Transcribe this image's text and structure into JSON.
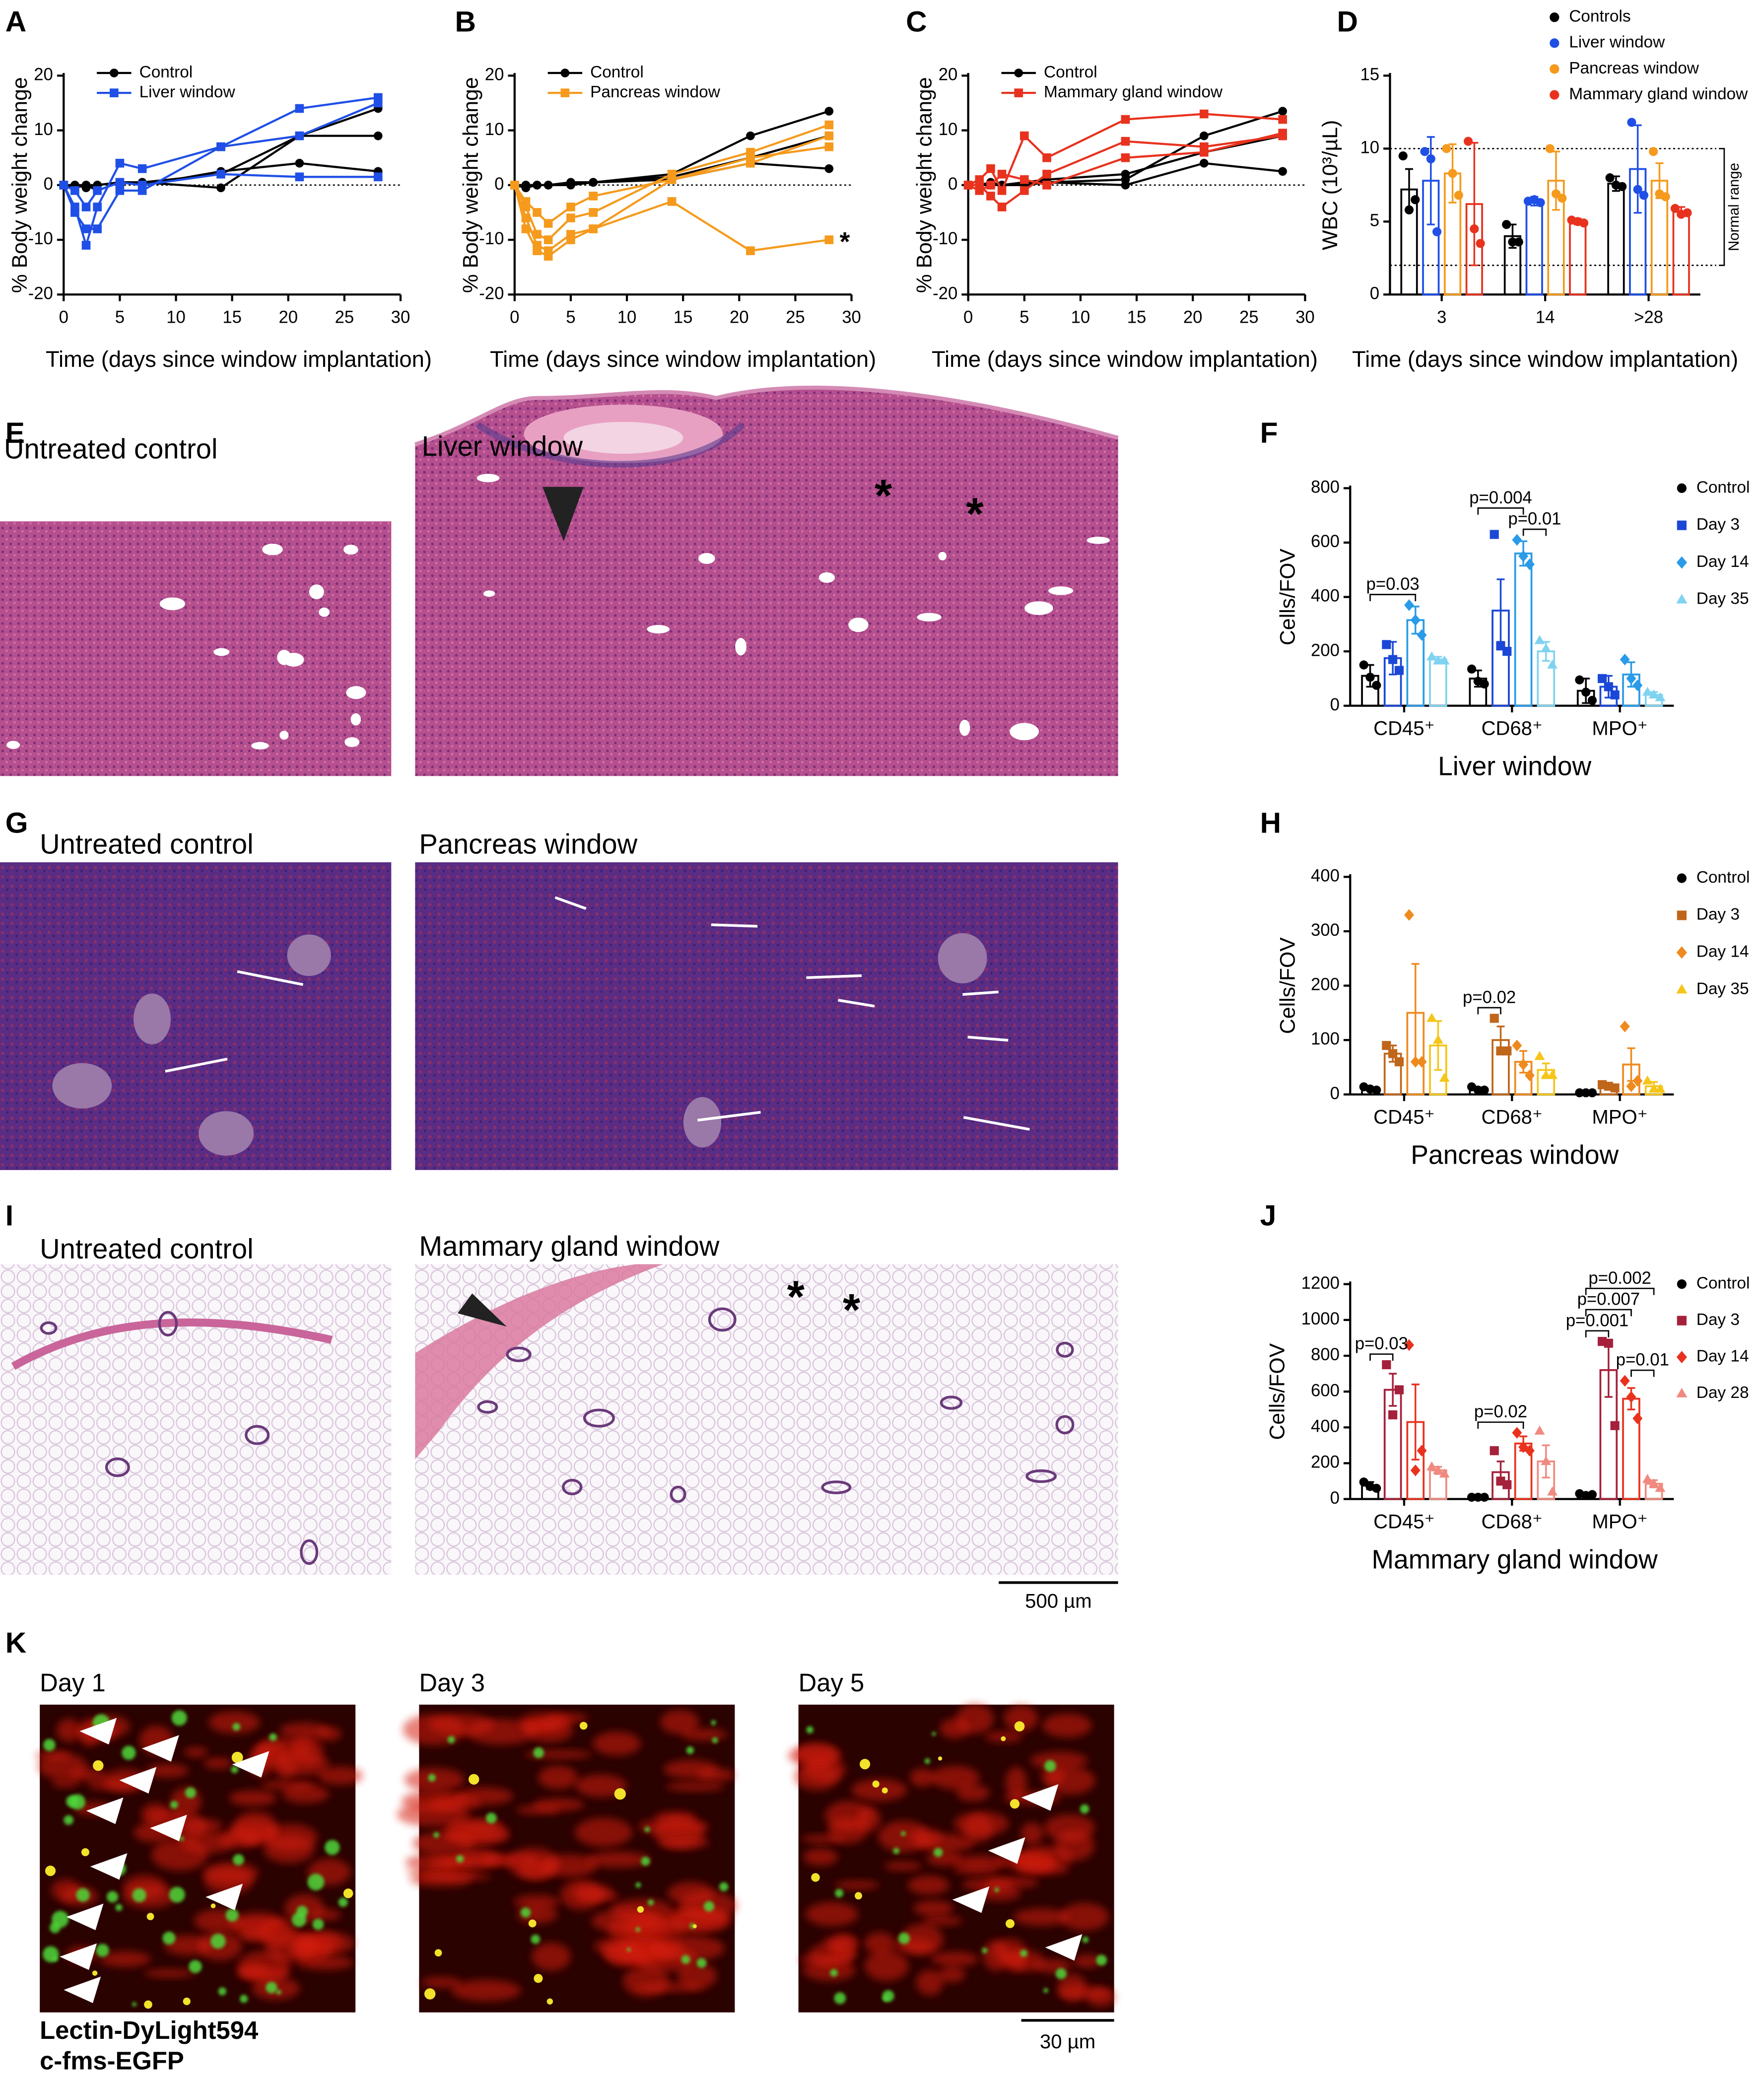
{
  "figure": {
    "letters": [
      "A",
      "B",
      "C",
      "D",
      "E",
      "F",
      "G",
      "H",
      "I",
      "J",
      "K"
    ],
    "image_titles": [
      "Untreated control",
      "Liver window",
      "Untreated control",
      "Pancreas window",
      "Untreated control",
      "Mammary gland window"
    ],
    "asterisks": [
      "*",
      "*",
      "*",
      "*"
    ],
    "scale_bars": [
      "500 µm",
      "30 µm"
    ],
    "day_labels": [
      "Day 1",
      "Day 3",
      "Day 5"
    ],
    "channels": [
      {
        "name": "Lectin-DyLight594",
        "color": "#e8321e"
      },
      {
        "name": "c-fms-EGFP",
        "color": "#3ec43a"
      }
    ]
  },
  "chart_data": [
    {
      "type": "line",
      "xlabel": "Time (days since window implantation)",
      "ylabel": "% Body weight change",
      "x": [
        0,
        1,
        2,
        3,
        5,
        7,
        14,
        21,
        28
      ],
      "xlim": [
        0,
        30
      ],
      "xticks": [
        0,
        5,
        10,
        15,
        20,
        25,
        30
      ],
      "ylim": [
        -20,
        20
      ],
      "yticks": [
        -20,
        -10,
        0,
        10,
        20
      ],
      "hline": 0,
      "legend": "upper left",
      "series": [
        {
          "name": "Control",
          "color": "#000000",
          "marker": "circle",
          "lines": [
            [
              0,
              -0.5,
              0,
              0,
              0.5,
              0.5,
              -0.5,
              9,
              14
            ],
            [
              0,
              0,
              -0.5,
              0,
              0.5,
              0.5,
              2,
              9,
              9
            ],
            [
              0,
              0,
              0,
              -1,
              0.5,
              0,
              2.5,
              4,
              2.5
            ]
          ]
        },
        {
          "name": "Liver window",
          "color": "#1f4fe6",
          "marker": "square",
          "lines": [
            [
              0,
              -4,
              -11,
              -4,
              4,
              3,
              7,
              14,
              16
            ],
            [
              0,
              -5,
              -8,
              -8,
              -1,
              -1,
              7,
              9,
              15
            ],
            [
              0,
              -1,
              -4,
              -1,
              0.5,
              0,
              2,
              1.5,
              1.5
            ]
          ]
        }
      ]
    },
    {
      "type": "line",
      "xlabel": "Time (days since window implantation)",
      "ylabel": "% Body weight change",
      "x": [
        0,
        1,
        2,
        3,
        5,
        7,
        14,
        21,
        28
      ],
      "xlim": [
        0,
        30
      ],
      "xticks": [
        0,
        5,
        10,
        15,
        20,
        25,
        30
      ],
      "ylim": [
        -20,
        20
      ],
      "yticks": [
        -20,
        -10,
        0,
        10,
        20
      ],
      "hline": 0,
      "legend": "upper left",
      "series": [
        {
          "name": "Control",
          "color": "#000000",
          "marker": "circle",
          "lines": [
            [
              0,
              0,
              0,
              0,
              0.5,
              0.5,
              2,
              9,
              13.5
            ],
            [
              0,
              0,
              0,
              0,
              0,
              0.5,
              1.5,
              5,
              9
            ],
            [
              0,
              -0.5,
              0,
              0,
              0.5,
              0.5,
              1,
              4,
              3
            ]
          ]
        },
        {
          "name": "Pancreas window",
          "color": "#f59a1c",
          "marker": "square",
          "lines": [
            [
              0,
              -4,
              -9,
              -10,
              -6,
              -5,
              2,
              6,
              11
            ],
            [
              0,
              -6,
              -11,
              -12,
              -9,
              -8,
              1,
              4,
              9
            ],
            [
              0,
              -8,
              -12,
              -13,
              -10,
              -8,
              -3,
              -12,
              -10
            ],
            [
              0,
              -3,
              -5,
              -7,
              -4,
              -2,
              1,
              5,
              7
            ]
          ]
        }
      ],
      "annotations": [
        {
          "text": "*",
          "series": 1,
          "line": 2,
          "point": 8
        }
      ]
    },
    {
      "type": "line",
      "xlabel": "Time (days since window implantation)",
      "ylabel": "% Body weight change",
      "x": [
        0,
        1,
        2,
        3,
        5,
        7,
        14,
        21,
        28
      ],
      "xlim": [
        0,
        30
      ],
      "xticks": [
        0,
        5,
        10,
        15,
        20,
        25,
        30
      ],
      "ylim": [
        -20,
        20
      ],
      "yticks": [
        -20,
        -10,
        0,
        10,
        20
      ],
      "hline": 0,
      "legend": "upper left",
      "series": [
        {
          "name": "Control",
          "color": "#000000",
          "marker": "circle",
          "lines": [
            [
              0,
              0,
              0,
              0,
              0.5,
              0.5,
              1,
              9,
              13.5
            ],
            [
              0,
              0,
              0.5,
              0,
              0.5,
              1,
              2,
              6,
              9
            ],
            [
              0,
              0,
              0,
              0,
              0,
              0.5,
              0,
              4,
              2.5
            ]
          ]
        },
        {
          "name": "Mammary gland window",
          "color": "#e8321e",
          "marker": "square",
          "lines": [
            [
              0,
              1,
              3,
              -1,
              9,
              5,
              12,
              13,
              12
            ],
            [
              0,
              0,
              -2,
              -4,
              -1,
              2,
              8,
              7,
              9
            ],
            [
              0,
              -1,
              0,
              2,
              1,
              0,
              5,
              6,
              9.5
            ]
          ]
        }
      ]
    },
    {
      "type": "bar",
      "xlabel": "Time (days since window implantation)",
      "ylabel": "WBC (10³/µL)",
      "categories": [
        "3",
        "14",
        ">28"
      ],
      "ylim": [
        0,
        15
      ],
      "yticks": [
        0,
        5,
        10,
        15
      ],
      "ref_lines": [
        10,
        2
      ],
      "range_label": "Normal range",
      "legend": "upper right",
      "series": [
        {
          "name": "Controls",
          "color": "#000000",
          "marker": "circle",
          "values": [
            7.2,
            4,
            7.6
          ],
          "errors": [
            1.4,
            0.8,
            0.5
          ],
          "points": [
            [
              9.5,
              6.5,
              5.8
            ],
            [
              4.8,
              3.6,
              3.6
            ],
            [
              8,
              7.4,
              7.5
            ]
          ]
        },
        {
          "name": "Liver window",
          "color": "#1f4fe6",
          "marker": "circle",
          "values": [
            7.8,
            6.4,
            8.6
          ],
          "errors": [
            3,
            0.3,
            3
          ],
          "points": [
            [
              9.8,
              4.3,
              9.3
            ],
            [
              6.4,
              6.3,
              6.5
            ],
            [
              11.8,
              6.8,
              7.2
            ]
          ]
        },
        {
          "name": "Pancreas window",
          "color": "#f59a1c",
          "marker": "circle",
          "values": [
            8.3,
            7.8,
            7.8
          ],
          "errors": [
            2,
            2,
            1.2
          ],
          "points": [
            [
              10,
              6.8,
              8.3
            ],
            [
              10,
              6.6,
              6.9
            ],
            [
              9.8,
              6.7,
              6.9
            ]
          ]
        },
        {
          "name": "Mammary gland window",
          "color": "#e8321e",
          "marker": "circle",
          "values": [
            6.2,
            5,
            5.7
          ],
          "errors": [
            4.2,
            0.2,
            0.3
          ],
          "points": [
            [
              10.5,
              3.5,
              4.5
            ],
            [
              5.1,
              4.9,
              5
            ],
            [
              5.9,
              5.6,
              5.5
            ]
          ]
        }
      ]
    },
    {
      "type": "bar",
      "xlabel": "Liver window",
      "ylabel": "Cells/FOV",
      "categories": [
        "CD45⁺",
        "CD68⁺",
        "MPO⁺"
      ],
      "ylim": [
        0,
        800
      ],
      "yticks": [
        0,
        200,
        400,
        600,
        800
      ],
      "legend": "right",
      "series": [
        {
          "name": "Control",
          "color": "#000000",
          "marker": "circle",
          "values": [
            110,
            100,
            55
          ],
          "errors": [
            40,
            30,
            45
          ],
          "points": [
            [
              150,
              75,
              105
            ],
            [
              135,
              80,
              90
            ],
            [
              95,
              20,
              50
            ]
          ]
        },
        {
          "name": "Day 3",
          "color": "#1a47d6",
          "marker": "square",
          "values": [
            175,
            350,
            70
          ],
          "errors": [
            60,
            115,
            40
          ],
          "points": [
            [
              225,
              130,
              170
            ],
            [
              630,
              200,
              220
            ],
            [
              100,
              40,
              70
            ]
          ]
        },
        {
          "name": "Day 14",
          "color": "#2a9be8",
          "marker": "diamond",
          "values": [
            315,
            560,
            115
          ],
          "errors": [
            50,
            45,
            45
          ],
          "points": [
            [
              370,
              260,
              315
            ],
            [
              610,
              520,
              550
            ],
            [
              170,
              75,
              100
            ]
          ]
        },
        {
          "name": "Day 35",
          "color": "#7fd3f0",
          "marker": "triangle",
          "values": [
            170,
            200,
            40
          ],
          "errors": [
            10,
            35,
            10
          ],
          "points": [
            [
              180,
              165,
              165
            ],
            [
              240,
              150,
              210
            ],
            [
              50,
              30,
              40
            ]
          ]
        }
      ],
      "comparisons": [
        {
          "label": "p=0.03",
          "category": 0,
          "from": 0,
          "to": 2
        },
        {
          "label": "p=0.01",
          "category": 1,
          "from": 2,
          "to": 3
        },
        {
          "label": "p=0.004",
          "category": 1,
          "from": 0,
          "to": 2
        }
      ]
    },
    {
      "type": "bar",
      "xlabel": "Pancreas window",
      "ylabel": "Cells/FOV",
      "categories": [
        "CD45⁺",
        "CD68⁺",
        "MPO⁺"
      ],
      "ylim": [
        0,
        400
      ],
      "yticks": [
        0,
        100,
        200,
        300,
        400
      ],
      "legend": "right",
      "series": [
        {
          "name": "Control",
          "color": "#000000",
          "marker": "circle",
          "values": [
            10,
            10,
            3
          ],
          "errors": [
            3,
            3,
            2
          ],
          "points": [
            [
              14,
              8,
              10
            ],
            [
              14,
              8,
              8
            ],
            [
              3,
              3,
              3
            ]
          ]
        },
        {
          "name": "Day 3",
          "color": "#c0661a",
          "marker": "square",
          "values": [
            75,
            100,
            15
          ],
          "errors": [
            15,
            25,
            5
          ],
          "points": [
            [
              90,
              60,
              75
            ],
            [
              140,
              80,
              80
            ],
            [
              18,
              12,
              15
            ]
          ]
        },
        {
          "name": "Day 14",
          "color": "#ef8a1e",
          "marker": "diamond",
          "values": [
            150,
            60,
            55
          ],
          "errors": [
            90,
            20,
            30
          ],
          "points": [
            [
              330,
              60,
              60
            ],
            [
              90,
              35,
              55
            ],
            [
              125,
              25,
              15
            ]
          ]
        },
        {
          "name": "Day 35",
          "color": "#f5c518",
          "marker": "triangle",
          "values": [
            90,
            45,
            15
          ],
          "errors": [
            45,
            12,
            8
          ],
          "points": [
            [
              140,
              30,
              100
            ],
            [
              70,
              35,
              35
            ],
            [
              25,
              10,
              10
            ]
          ]
        }
      ],
      "comparisons": [
        {
          "label": "p=0.02",
          "category": 1,
          "from": 0,
          "to": 1
        }
      ]
    },
    {
      "type": "bar",
      "xlabel": "Mammary gland window",
      "ylabel": "Cells/FOV",
      "categories": [
        "CD45⁺",
        "CD68⁺",
        "MPO⁺"
      ],
      "ylim": [
        0,
        1200
      ],
      "yticks": [
        0,
        200,
        400,
        600,
        800,
        1000,
        1200
      ],
      "legend": "right",
      "series": [
        {
          "name": "Control",
          "color": "#000000",
          "marker": "circle",
          "values": [
            75,
            10,
            25
          ],
          "errors": [
            20,
            5,
            5
          ],
          "points": [
            [
              95,
              60,
              70
            ],
            [
              10,
              10,
              10
            ],
            [
              30,
              25,
              20
            ]
          ]
        },
        {
          "name": "Day 3",
          "color": "#a5203a",
          "marker": "square",
          "values": [
            610,
            150,
            720
          ],
          "errors": [
            90,
            60,
            150
          ],
          "points": [
            [
              750,
              610,
              470
            ],
            [
              270,
              80,
              100
            ],
            [
              880,
              410,
              870
            ]
          ]
        },
        {
          "name": "Day 14",
          "color": "#e8321e",
          "marker": "diamond",
          "values": [
            430,
            310,
            560
          ],
          "errors": [
            210,
            40,
            60
          ],
          "points": [
            [
              860,
              270,
              160
            ],
            [
              370,
              270,
              290
            ],
            [
              660,
              450,
              570
            ]
          ]
        },
        {
          "name": "Day 28",
          "color": "#f08a80",
          "marker": "triangle",
          "values": [
            160,
            210,
            85
          ],
          "errors": [
            20,
            90,
            20
          ],
          "points": [
            [
              180,
              140,
              160
            ],
            [
              380,
              40,
              210
            ],
            [
              110,
              60,
              85
            ]
          ]
        }
      ],
      "comparisons": [
        {
          "label": "p=0.03",
          "category": 0,
          "from": 0,
          "to": 1
        },
        {
          "label": "p=0.02",
          "category": 1,
          "from": 0,
          "to": 2
        },
        {
          "label": "p=0.001",
          "category": 2,
          "from": 0,
          "to": 1
        },
        {
          "label": "p=0.01",
          "category": 2,
          "from": 2,
          "to": 3
        },
        {
          "label": "p=0.007",
          "category": 2,
          "from": 0,
          "to": 2
        },
        {
          "label": "p=0.002",
          "category": 2,
          "from": 0,
          "to": 3
        }
      ]
    }
  ]
}
